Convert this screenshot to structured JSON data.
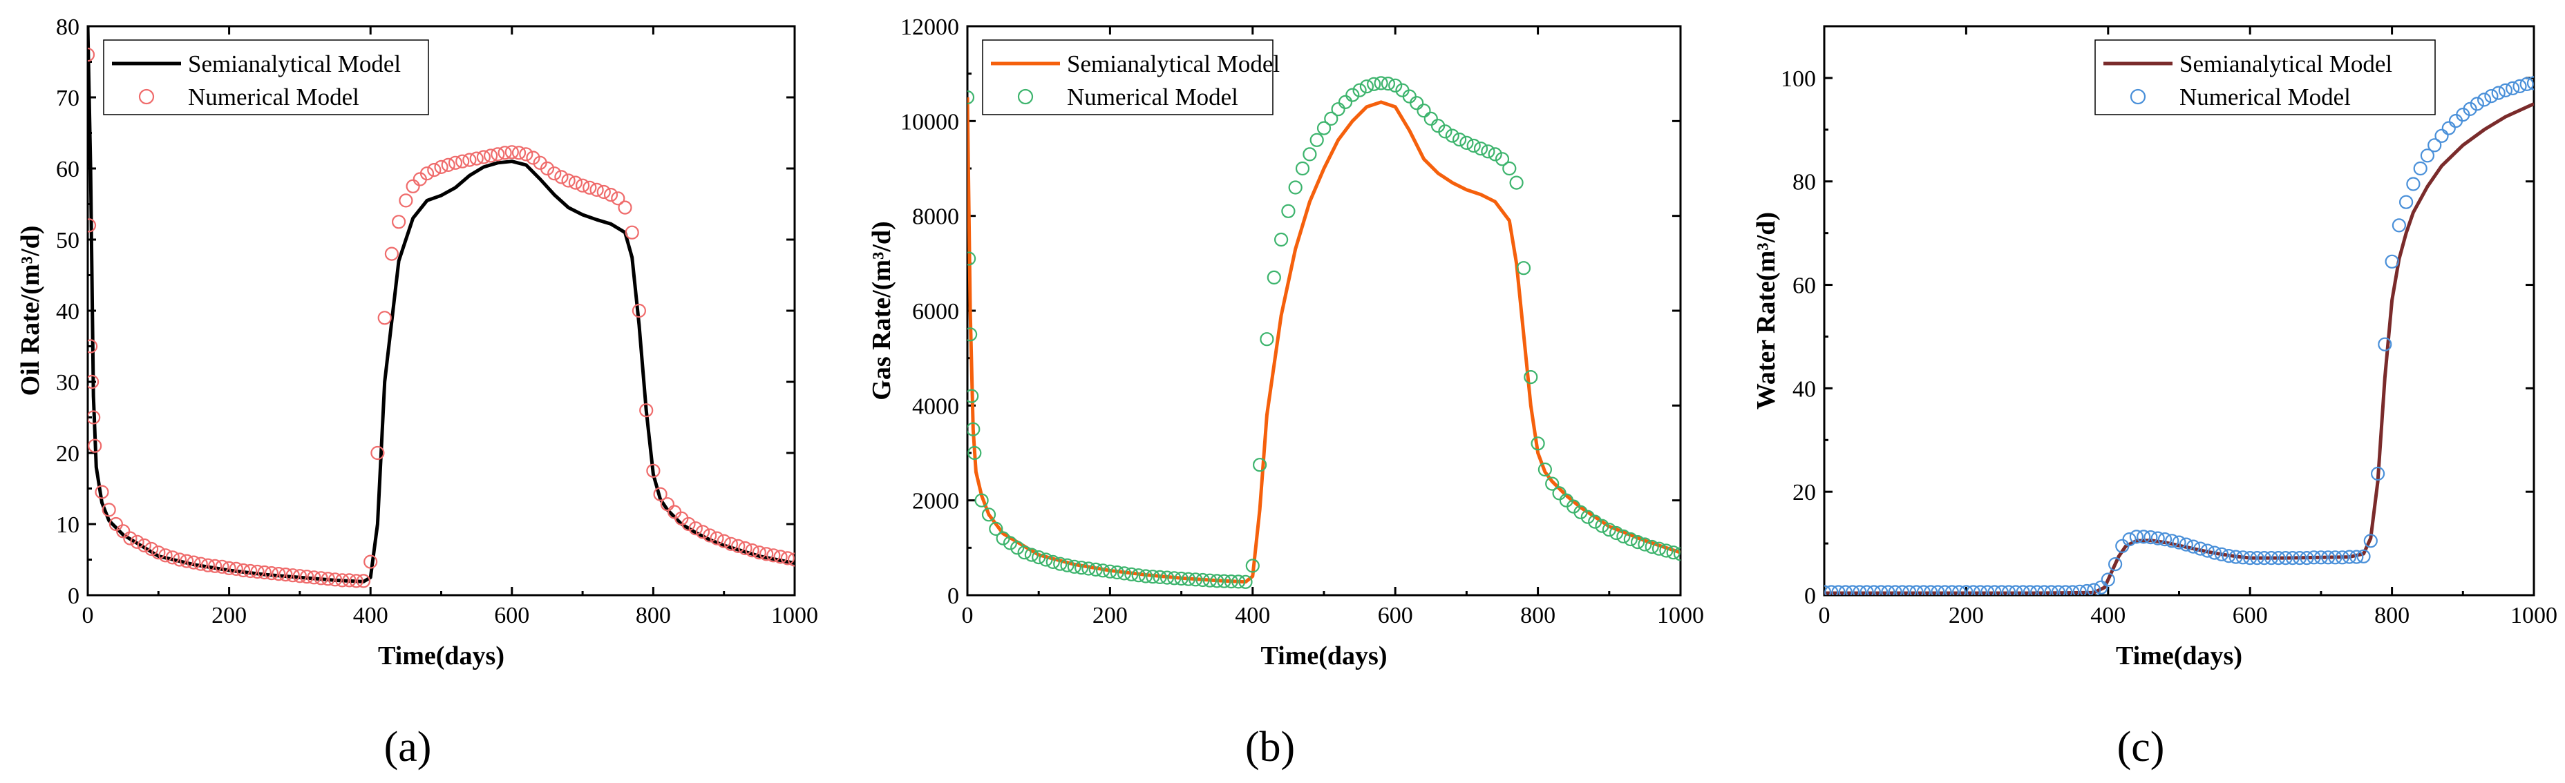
{
  "chart_data": [
    {
      "type": "line",
      "panel": "(a)",
      "xlabel": "Time(days)",
      "ylabel": "Oil Rate/(m³/d)",
      "xlim": [
        0,
        1000
      ],
      "ylim": [
        0,
        80
      ],
      "xticks": [
        0,
        200,
        400,
        600,
        800,
        1000
      ],
      "yticks": [
        0,
        10,
        20,
        30,
        40,
        50,
        60,
        70,
        80
      ],
      "legend_position": "top-left",
      "series": [
        {
          "name": "Semianalytical Model",
          "style": "line",
          "color": "#000000",
          "x": [
            0,
            4,
            8,
            12,
            20,
            30,
            50,
            100,
            150,
            200,
            250,
            300,
            350,
            390,
            400,
            410,
            420,
            440,
            460,
            480,
            500,
            520,
            540,
            560,
            580,
            600,
            620,
            640,
            660,
            680,
            700,
            720,
            740,
            760,
            770,
            780,
            790,
            800,
            810,
            820,
            840,
            860,
            880,
            900,
            950,
            1000
          ],
          "y": [
            80,
            60,
            28,
            18,
            13,
            10.5,
            8.5,
            5.5,
            4.3,
            3.5,
            2.9,
            2.5,
            2.1,
            1.9,
            2.5,
            10,
            30,
            47,
            53,
            55.5,
            56.2,
            57.3,
            59,
            60.2,
            60.8,
            61,
            60.5,
            58.5,
            56.3,
            54.5,
            53.5,
            52.8,
            52.2,
            51,
            47.5,
            38,
            26,
            17,
            13.5,
            12,
            10,
            8.8,
            7.8,
            7,
            5.5,
            4.5
          ]
        },
        {
          "name": "Numerical Model",
          "style": "marker",
          "color": "#ef6b6b",
          "x": [
            0,
            2,
            4,
            6,
            8,
            10,
            20,
            30,
            40,
            50,
            60,
            70,
            80,
            90,
            100,
            110,
            120,
            130,
            140,
            150,
            160,
            170,
            180,
            190,
            200,
            210,
            220,
            230,
            240,
            250,
            260,
            270,
            280,
            290,
            300,
            310,
            320,
            330,
            340,
            350,
            360,
            370,
            380,
            390,
            400,
            410,
            420,
            430,
            440,
            450,
            460,
            470,
            480,
            490,
            500,
            510,
            520,
            530,
            540,
            550,
            560,
            570,
            580,
            590,
            600,
            610,
            620,
            630,
            640,
            650,
            660,
            670,
            680,
            690,
            700,
            710,
            720,
            730,
            740,
            750,
            760,
            770,
            780,
            790,
            800,
            810,
            820,
            830,
            840,
            850,
            860,
            870,
            880,
            890,
            900,
            910,
            920,
            930,
            940,
            950,
            960,
            970,
            980,
            990,
            1000
          ],
          "y": [
            76,
            52,
            35,
            30,
            25,
            21,
            14.5,
            12,
            10,
            9,
            8,
            7.5,
            7,
            6.5,
            6,
            5.6,
            5.3,
            5,
            4.8,
            4.6,
            4.4,
            4.2,
            4.1,
            4,
            3.8,
            3.7,
            3.5,
            3.4,
            3.3,
            3.2,
            3.1,
            3,
            2.9,
            2.8,
            2.7,
            2.6,
            2.5,
            2.4,
            2.3,
            2.2,
            2.1,
            2.1,
            2,
            2,
            4.7,
            20,
            39,
            48,
            52.5,
            55.5,
            57.5,
            58.5,
            59.3,
            59.8,
            60.2,
            60.5,
            60.8,
            61,
            61.2,
            61.4,
            61.6,
            61.8,
            62,
            62.2,
            62.3,
            62.2,
            62,
            61.5,
            60.8,
            60,
            59.3,
            58.8,
            58.3,
            58,
            57.6,
            57.3,
            57,
            56.7,
            56.3,
            55.8,
            54.5,
            51,
            40,
            26,
            17.5,
            14.2,
            12.8,
            11.7,
            10.8,
            10,
            9.4,
            8.9,
            8.4,
            8,
            7.6,
            7.2,
            6.9,
            6.6,
            6.3,
            6,
            5.8,
            5.6,
            5.4,
            5.2,
            5
          ]
        }
      ]
    },
    {
      "type": "line",
      "panel": "(b)",
      "xlabel": "Time(days)",
      "ylabel": "Gas Rate/(m³/d)",
      "xlim": [
        0,
        1000
      ],
      "ylim": [
        0,
        12000
      ],
      "xticks": [
        0,
        200,
        400,
        600,
        800,
        1000
      ],
      "yticks": [
        0,
        2000,
        4000,
        6000,
        8000,
        10000,
        12000
      ],
      "legend_position": "top-left",
      "series": [
        {
          "name": "Semianalytical Model",
          "style": "line",
          "color": "#f5600c",
          "x": [
            0,
            4,
            8,
            12,
            20,
            30,
            50,
            100,
            150,
            200,
            250,
            300,
            350,
            390,
            400,
            410,
            420,
            440,
            460,
            480,
            500,
            520,
            540,
            560,
            580,
            600,
            620,
            640,
            660,
            680,
            700,
            720,
            740,
            760,
            770,
            780,
            790,
            800,
            810,
            820,
            840,
            860,
            880,
            900,
            950,
            1000
          ],
          "y": [
            10500,
            6000,
            3500,
            2600,
            2100,
            1700,
            1300,
            850,
            650,
            520,
            430,
            360,
            310,
            280,
            400,
            1800,
            3800,
            5900,
            7300,
            8300,
            9000,
            9600,
            10000,
            10300,
            10400,
            10300,
            9800,
            9200,
            8900,
            8700,
            8550,
            8450,
            8300,
            7900,
            7000,
            5500,
            4000,
            3000,
            2600,
            2400,
            2100,
            1850,
            1650,
            1450,
            1150,
            900
          ]
        },
        {
          "name": "Numerical Model",
          "style": "marker",
          "color": "#3db46d",
          "x": [
            0,
            2,
            4,
            6,
            8,
            10,
            20,
            30,
            40,
            50,
            60,
            70,
            80,
            90,
            100,
            110,
            120,
            130,
            140,
            150,
            160,
            170,
            180,
            190,
            200,
            210,
            220,
            230,
            240,
            250,
            260,
            270,
            280,
            290,
            300,
            310,
            320,
            330,
            340,
            350,
            360,
            370,
            380,
            390,
            400,
            410,
            420,
            430,
            440,
            450,
            460,
            470,
            480,
            490,
            500,
            510,
            520,
            530,
            540,
            550,
            560,
            570,
            580,
            590,
            600,
            610,
            620,
            630,
            640,
            650,
            660,
            670,
            680,
            690,
            700,
            710,
            720,
            730,
            740,
            750,
            760,
            770,
            780,
            790,
            800,
            810,
            820,
            830,
            840,
            850,
            860,
            870,
            880,
            890,
            900,
            910,
            920,
            930,
            940,
            950,
            960,
            970,
            980,
            990,
            1000
          ],
          "y": [
            10500,
            7100,
            5500,
            4200,
            3500,
            3000,
            2000,
            1700,
            1400,
            1200,
            1100,
            1000,
            900,
            850,
            800,
            750,
            700,
            660,
            630,
            600,
            580,
            560,
            540,
            520,
            500,
            480,
            460,
            440,
            420,
            400,
            390,
            380,
            370,
            360,
            350,
            340,
            330,
            320,
            310,
            300,
            295,
            290,
            285,
            280,
            620,
            2750,
            5400,
            6700,
            7500,
            8100,
            8600,
            9000,
            9300,
            9600,
            9850,
            10050,
            10250,
            10400,
            10550,
            10650,
            10730,
            10780,
            10800,
            10790,
            10750,
            10650,
            10520,
            10380,
            10220,
            10050,
            9900,
            9780,
            9690,
            9610,
            9540,
            9480,
            9420,
            9360,
            9300,
            9200,
            9000,
            8700,
            6900,
            4600,
            3200,
            2650,
            2350,
            2150,
            2000,
            1870,
            1750,
            1650,
            1550,
            1460,
            1380,
            1310,
            1240,
            1180,
            1120,
            1070,
            1020,
            980,
            940,
            900,
            870
          ]
        }
      ]
    },
    {
      "type": "line",
      "panel": "(c)",
      "xlabel": "Time(days)",
      "ylabel": "Water Rate(m³/d)",
      "xlim": [
        0,
        1000
      ],
      "ylim": [
        0,
        110
      ],
      "xticks": [
        0,
        200,
        400,
        600,
        800,
        1000
      ],
      "yticks": [
        0,
        20,
        40,
        60,
        80,
        100
      ],
      "legend_position": "top-right",
      "series": [
        {
          "name": "Semianalytical Model",
          "style": "line",
          "color": "#7a2b2b",
          "x": [
            0,
            100,
            200,
            300,
            380,
            395,
            405,
            415,
            425,
            440,
            460,
            480,
            500,
            520,
            540,
            560,
            580,
            600,
            650,
            700,
            740,
            760,
            770,
            780,
            790,
            800,
            810,
            820,
            830,
            850,
            870,
            900,
            930,
            960,
            1000
          ],
          "y": [
            0.4,
            0.4,
            0.4,
            0.4,
            0.5,
            1.5,
            4.5,
            7.5,
            9.5,
            10.5,
            10.6,
            10.2,
            9.6,
            9,
            8.4,
            7.9,
            7.5,
            7.2,
            7.2,
            7.3,
            7.4,
            8,
            11,
            22,
            42,
            57,
            65,
            70,
            74,
            79,
            83,
            87,
            90,
            92.5,
            95
          ]
        },
        {
          "name": "Numerical Model",
          "style": "marker",
          "color": "#4a90d9",
          "x": [
            0,
            10,
            20,
            30,
            40,
            50,
            60,
            70,
            80,
            90,
            100,
            110,
            120,
            130,
            140,
            150,
            160,
            170,
            180,
            190,
            200,
            210,
            220,
            230,
            240,
            250,
            260,
            270,
            280,
            290,
            300,
            310,
            320,
            330,
            340,
            350,
            360,
            370,
            380,
            390,
            400,
            410,
            420,
            430,
            440,
            450,
            460,
            470,
            480,
            490,
            500,
            510,
            520,
            530,
            540,
            550,
            560,
            570,
            580,
            590,
            600,
            610,
            620,
            630,
            640,
            650,
            660,
            670,
            680,
            690,
            700,
            710,
            720,
            730,
            740,
            750,
            760,
            770,
            780,
            790,
            800,
            810,
            820,
            830,
            840,
            850,
            860,
            870,
            880,
            890,
            900,
            910,
            920,
            930,
            940,
            950,
            960,
            970,
            980,
            990,
            1000
          ],
          "y": [
            0.6,
            0.6,
            0.6,
            0.6,
            0.6,
            0.6,
            0.6,
            0.6,
            0.6,
            0.6,
            0.6,
            0.6,
            0.6,
            0.6,
            0.6,
            0.6,
            0.6,
            0.6,
            0.6,
            0.6,
            0.6,
            0.6,
            0.6,
            0.6,
            0.6,
            0.6,
            0.6,
            0.6,
            0.6,
            0.6,
            0.6,
            0.6,
            0.6,
            0.6,
            0.6,
            0.6,
            0.7,
            0.8,
            1,
            1.5,
            3,
            6,
            9.5,
            10.8,
            11.3,
            11.3,
            11.2,
            11,
            10.8,
            10.5,
            10.2,
            9.8,
            9.4,
            9,
            8.6,
            8.2,
            7.9,
            7.6,
            7.4,
            7.3,
            7.2,
            7.2,
            7.2,
            7.2,
            7.2,
            7.2,
            7.2,
            7.2,
            7.2,
            7.3,
            7.3,
            7.3,
            7.3,
            7.3,
            7.4,
            7.4,
            7.5,
            10.5,
            23.5,
            48.5,
            64.5,
            71.5,
            76,
            79.5,
            82.5,
            85,
            87,
            88.8,
            90.3,
            91.7,
            92.9,
            94,
            95,
            95.8,
            96.5,
            97.1,
            97.6,
            98,
            98.4,
            98.8,
            99
          ]
        }
      ]
    }
  ]
}
